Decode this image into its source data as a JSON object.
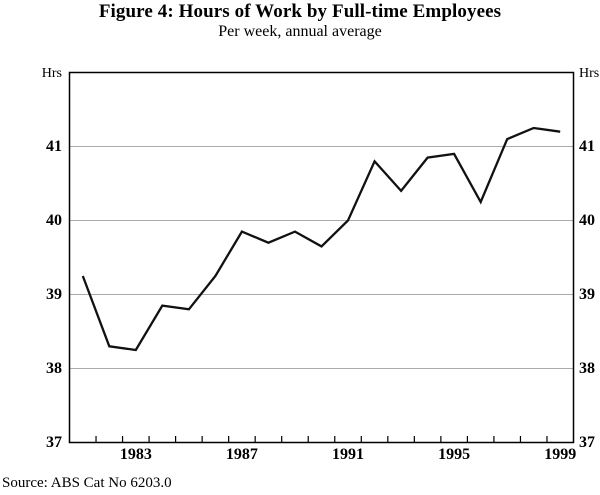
{
  "header": {
    "title": "Figure 4: Hours of Work by Full-time Employees",
    "subtitle": "Per week, annual average"
  },
  "y_axis": {
    "left_unit": "Hrs",
    "right_unit": "Hrs"
  },
  "footer": {
    "source": "Source: ABS Cat No 6203.0"
  },
  "chart_data": {
    "type": "line",
    "title": "Figure 4: Hours of Work by Full-time Employees",
    "subtitle": "Per week, annual average",
    "xlabel": "",
    "ylabel": "Hrs",
    "x": [
      1981,
      1982,
      1983,
      1984,
      1985,
      1986,
      1987,
      1988,
      1989,
      1990,
      1991,
      1992,
      1993,
      1994,
      1995,
      1996,
      1997,
      1998,
      1999
    ],
    "series": [
      {
        "name": "Hours of work by full-time employees (per week, annual average)",
        "values": [
          39.25,
          38.3,
          38.25,
          38.85,
          38.8,
          39.25,
          39.85,
          39.7,
          39.85,
          39.65,
          40.0,
          40.8,
          40.4,
          40.85,
          40.9,
          40.25,
          41.1,
          41.25,
          41.2
        ]
      }
    ],
    "ylim": [
      37,
      42
    ],
    "yticks": [
      37,
      38,
      39,
      40,
      41
    ],
    "grid_values": [
      38,
      39,
      40,
      41
    ],
    "xtick_years": [
      1983,
      1987,
      1991,
      1995,
      1999
    ],
    "grid": "horizontal",
    "legend": false,
    "colors": {
      "line": "#111111",
      "grid": "#ababab",
      "axis": "#000000",
      "text": "#000000"
    }
  }
}
